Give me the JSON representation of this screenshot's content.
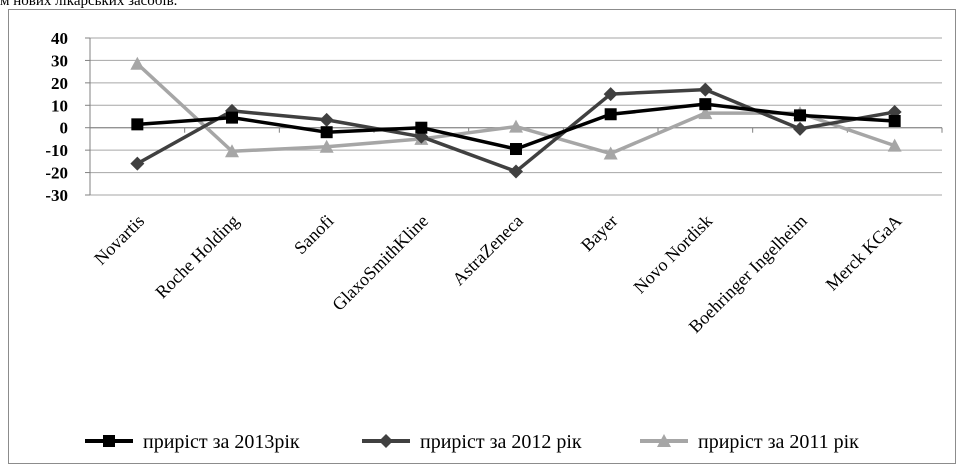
{
  "caption": "м нових лікарських засобів.",
  "chart_data": {
    "type": "line",
    "categories": [
      "Novartis",
      "Roche Holding",
      "Sanofi",
      "GlaxoSmithKline",
      "AstraZeneca",
      "Bayer",
      "Novo Nordisk",
      "Boehringer Ingelheim",
      "Merck KGaA"
    ],
    "ylim": [
      -30,
      40
    ],
    "yticks": [
      40,
      30,
      20,
      10,
      0,
      -10,
      -20,
      -30
    ],
    "grid": true,
    "legend_position": "bottom",
    "series": [
      {
        "name": "приріст за 2013рік",
        "color": "#000000",
        "marker": "square",
        "values": [
          1.5,
          4.5,
          -2,
          0,
          -9.5,
          6,
          10.5,
          5.5,
          3
        ]
      },
      {
        "name": "приріст за 2012 рік",
        "color": "#404040",
        "marker": "diamond",
        "values": [
          -16,
          7.5,
          3.5,
          -4,
          -19.5,
          15,
          17,
          -0.5,
          7
        ]
      },
      {
        "name": "приріст за 2011 рік",
        "color": "#a6a6a6",
        "marker": "triangle",
        "values": [
          28.5,
          -10.5,
          -8.5,
          -5,
          0.5,
          -11.5,
          6.5,
          6.5,
          -8
        ]
      }
    ]
  }
}
